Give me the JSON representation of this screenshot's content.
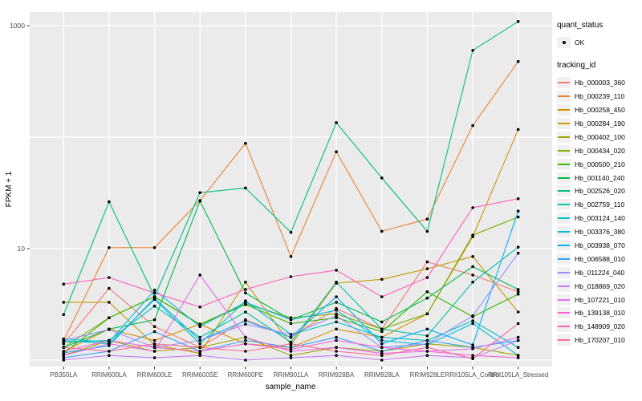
{
  "legend": {
    "quant_status_title": "quant_status",
    "quant_status_items": [
      {
        "label": "OK",
        "symbol": "point"
      }
    ],
    "tracking_id_title": "tracking_id"
  },
  "style": {
    "panel_bg": "#EBEBEB",
    "grid_color": "#FFFFFF",
    "tick_color": "#333333",
    "tick_label_color": "#4D4D4D",
    "point_color": "#000000",
    "legend_key_bg": "#F0F0F0"
  },
  "chart_data": {
    "type": "line",
    "title": "",
    "xlabel": "sample_name",
    "ylabel": "FPKM + 1",
    "y_scale": "log10",
    "ylim": [
      1,
      1200
    ],
    "y_tick_labels": [
      {
        "value": 10,
        "label": "10"
      },
      {
        "value": 1000,
        "label": "1000"
      }
    ],
    "gridlines_major": [
      1,
      10,
      100,
      1000
    ],
    "grid": "on",
    "legend_position": "right",
    "point_shape": "filled-circle",
    "categories": [
      "PB350LA",
      "RRIM600LA",
      "RRIM600LE",
      "RRIM600SE",
      "RRIM600PE",
      "RRIM901LA",
      "RRIM928BA",
      "RRIM928LA",
      "RRIM928LE",
      "RRII105LA_Control",
      "RRII105LA_Stressed"
    ],
    "series": [
      {
        "name": "Hb_000003_360",
        "color": "#F8766D",
        "values": [
          1.4,
          4.4,
          2.0,
          1.3,
          2.3,
          1.6,
          2.9,
          1.9,
          7.6,
          5.8,
          4.1
        ]
      },
      {
        "name": "Hb_000239_110",
        "color": "#EA8331",
        "values": [
          1.5,
          10.2,
          10.2,
          27,
          88,
          8.5,
          74,
          14.3,
          18.4,
          127,
          477
        ]
      },
      {
        "name": "Hb_000258_450",
        "color": "#D89000",
        "values": [
          1.2,
          1.9,
          1.5,
          2.1,
          1.4,
          1.3,
          1.9,
          1.6,
          2.6,
          12.8,
          117
        ]
      },
      {
        "name": "Hb_000284_190",
        "color": "#C09B00",
        "values": [
          3.3,
          3.3,
          1.37,
          1.15,
          5.0,
          1.37,
          4.9,
          5.3,
          6.6,
          8.5,
          2.7
        ]
      },
      {
        "name": "Hb_000402_100",
        "color": "#A3A500",
        "values": [
          1.1,
          1.5,
          1.2,
          1.3,
          1.6,
          1.1,
          1.3,
          1.2,
          1.4,
          1.3,
          1.1
        ]
      },
      {
        "name": "Hb_000434_020",
        "color": "#7CAE00",
        "values": [
          1.3,
          2.4,
          3.7,
          2.1,
          3.2,
          2.4,
          2.6,
          1.9,
          2.6,
          13.2,
          19.2
        ]
      },
      {
        "name": "Hb_000500_210",
        "color": "#39B600",
        "values": [
          1.15,
          2.4,
          3.7,
          2.07,
          3.15,
          2.13,
          2.4,
          1.8,
          4.1,
          2.45,
          3.9
        ]
      },
      {
        "name": "Hb_001140_240",
        "color": "#00BB4E",
        "values": [
          1.3,
          1.9,
          2.3,
          26.7,
          4.0,
          2.3,
          3.3,
          2.2,
          3.6,
          6.9,
          4.3
        ]
      },
      {
        "name": "Hb_002526_020",
        "color": "#00BF7D",
        "values": [
          2.56,
          26.3,
          3.7,
          31.8,
          35,
          14,
          135,
          43,
          14.3,
          600,
          1090
        ]
      },
      {
        "name": "Hb_002759_110",
        "color": "#00C1A3",
        "values": [
          1.45,
          1.5,
          3.05,
          1.6,
          2.7,
          1.45,
          5.0,
          1.9,
          1.65,
          5.0,
          10.3
        ]
      },
      {
        "name": "Hb_003124_140",
        "color": "#00BFC4",
        "values": [
          1.5,
          1.4,
          3.5,
          1.4,
          3.4,
          1.7,
          2.2,
          1.6,
          1.5,
          2.25,
          1.3
        ]
      },
      {
        "name": "Hb_003376_380",
        "color": "#00BAE0",
        "values": [
          1.55,
          1.45,
          4.25,
          2.0,
          3.3,
          2.3,
          2.8,
          1.5,
          1.37,
          2.13,
          1.1
        ]
      },
      {
        "name": "Hb_003938_070",
        "color": "#00B0F6",
        "values": [
          1.16,
          1.35,
          3.6,
          1.5,
          2.25,
          1.6,
          3.7,
          1.4,
          1.9,
          1.37,
          21.7
        ]
      },
      {
        "name": "Hb_006588_010",
        "color": "#35A2FF",
        "values": [
          1.05,
          1.2,
          1.8,
          1.2,
          1.5,
          1.3,
          1.6,
          1.2,
          1.5,
          1.3,
          1.5
        ]
      },
      {
        "name": "Hb_011224_040",
        "color": "#9590FF",
        "values": [
          1.5,
          1.88,
          1.3,
          1.5,
          2.1,
          1.7,
          2.5,
          1.3,
          1.4,
          2.5,
          9.1
        ]
      },
      {
        "name": "Hb_018869_020",
        "color": "#C77CFF",
        "values": [
          1.0,
          1.1,
          1.05,
          1.1,
          1.0,
          1.05,
          1.1,
          1.0,
          1.1,
          1.05,
          1.5
        ]
      },
      {
        "name": "Hb_107221_010",
        "color": "#E76BF3",
        "values": [
          1.1,
          1.4,
          1.2,
          5.8,
          1.6,
          1.2,
          1.3,
          1.15,
          1.2,
          1.26,
          1.6
        ]
      },
      {
        "name": "Hb_139138_010",
        "color": "#FA62DB",
        "values": [
          1.2,
          1.5,
          1.3,
          1.2,
          1.4,
          1.25,
          1.5,
          1.3,
          1.2,
          1.1,
          1.05
        ]
      },
      {
        "name": "Hb_148909_020",
        "color": "#FF62BC",
        "values": [
          4.8,
          5.5,
          4.0,
          3.0,
          4.3,
          5.6,
          6.4,
          3.7,
          5.5,
          23.3,
          28
        ]
      },
      {
        "name": "Hb_170207_010",
        "color": "#FF6A98",
        "values": [
          1.3,
          1.2,
          1.4,
          1.3,
          1.2,
          1.4,
          1.2,
          1.1,
          1.3,
          1.03,
          2.13
        ]
      }
    ]
  }
}
